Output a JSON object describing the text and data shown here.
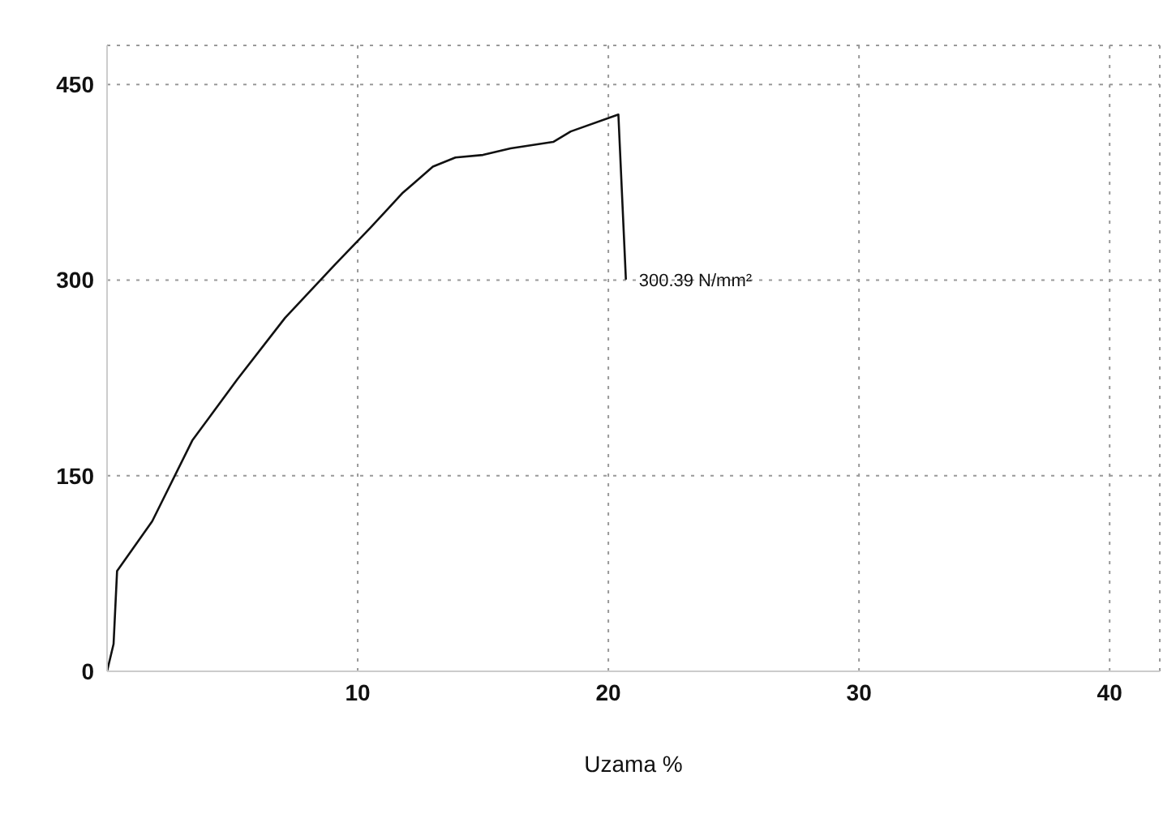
{
  "chart_data": {
    "type": "line",
    "xlabel": "Uzama %",
    "x": [
      0,
      0.26,
      0.4,
      1.8,
      3.4,
      5.2,
      7.1,
      9.1,
      10.5,
      11.8,
      13.0,
      13.9,
      15.0,
      16.1,
      17.8,
      18.5,
      20.4,
      20.7
    ],
    "series": [
      {
        "color": "#111111",
        "values": [
          0,
          21,
          77,
          115,
          177,
          224,
          271,
          312,
          340,
          367,
          387,
          394,
          396,
          401,
          406,
          414,
          427,
          300.39
        ]
      }
    ],
    "xlim": [
      0,
      42
    ],
    "xticks": [
      10,
      20,
      30,
      40
    ],
    "ylim": [
      0,
      480
    ],
    "yticks": [
      0,
      150,
      300,
      450
    ],
    "grid": true,
    "marker": "none",
    "line_style": "solid",
    "annotations": [
      {
        "text": "300.39 N/mm²",
        "x": 20.7,
        "y": 300.39
      }
    ]
  }
}
